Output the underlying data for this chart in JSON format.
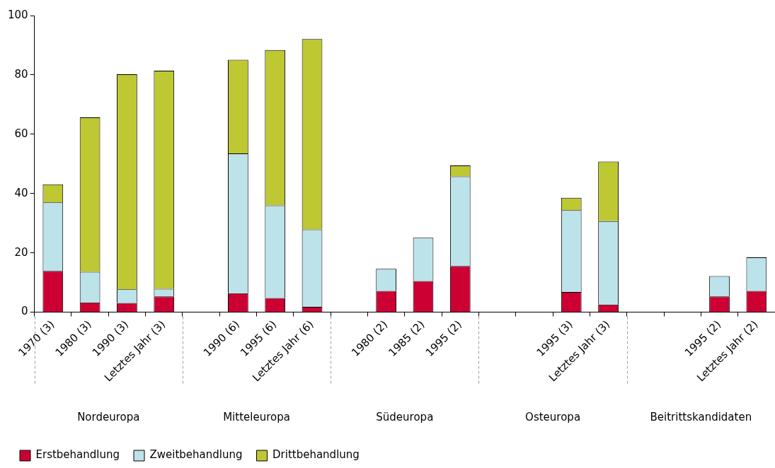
{
  "chart_data": {
    "type": "bar",
    "stacked": true,
    "categories": [
      "1970 (3)",
      "1980 (3)",
      "1990 (3)",
      "Letztes Jahr (3)",
      null,
      "1990 (6)",
      "1995 (6)",
      "Letztes Jahr (6)",
      null,
      "1980 (2)",
      "1985 (2)",
      "1995 (2)",
      null,
      null,
      "1995 (3)",
      "Letztes Jahr (3)",
      null,
      null,
      "1995 (2)",
      "Letztes Jahr (2)"
    ],
    "series": [
      {
        "name": "Erstbehandlung",
        "color": "#cc0033",
        "values": [
          13.9,
          3.3,
          3.1,
          5.3,
          0,
          6.4,
          4.8,
          1.8,
          0,
          7.2,
          10.5,
          15.6,
          0,
          0,
          6.8,
          2.6,
          0,
          0,
          5.3,
          7.2
        ]
      },
      {
        "name": "Zweitbehandlung",
        "color": "#bde3ea",
        "values": [
          23.1,
          10.3,
          4.6,
          2.6,
          0,
          47.1,
          31.2,
          26.1,
          0,
          7.4,
          14.6,
          30.2,
          0,
          0,
          27.6,
          28.1,
          0,
          0,
          6.9,
          11.3
        ]
      },
      {
        "name": "Drittbehandlung",
        "color": "#bec832",
        "values": [
          6.1,
          52.1,
          72.5,
          73.5,
          0,
          31.6,
          52.4,
          64.2,
          0,
          0,
          0,
          3.7,
          0,
          0,
          4.2,
          20.1,
          0,
          0,
          0,
          0
        ]
      }
    ],
    "ylim": [
      0,
      100
    ],
    "yticks": [
      0,
      20,
      40,
      60,
      80,
      100
    ],
    "grid": false,
    "legend": "bottom left",
    "annotations": [
      "Nordeuropa",
      "Mitteleuropa",
      "Südeuropa",
      "Osteuropa",
      "Beitrittskandidaten"
    ]
  }
}
